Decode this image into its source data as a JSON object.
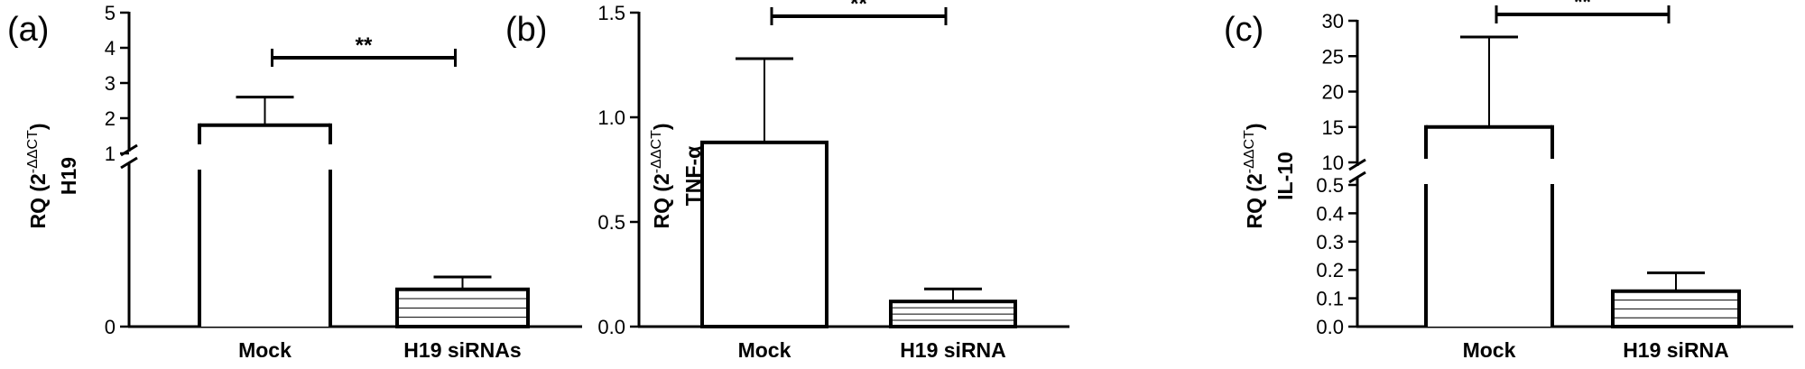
{
  "chart_data": [
    {
      "type": "bar",
      "panel_label": "(a)",
      "categories": [
        "Mock",
        "H19 siRNAs"
      ],
      "values": [
        1.8,
        0.12
      ],
      "errors": [
        0.8,
        0.04
      ],
      "patterns": [
        "none",
        "horizontal-lines"
      ],
      "ylabel_prefix": "RQ (2",
      "ylabel_sup": "-ΔΔCT",
      "ylabel_suffix": ")",
      "ylabel_gene": "H19",
      "y_broken": true,
      "y_ticks_upper": [
        "1",
        "2",
        "3",
        "4",
        "5"
      ],
      "y_ticks_lower": [
        "0"
      ],
      "significance": "**"
    },
    {
      "type": "bar",
      "panel_label": "(b)",
      "categories": [
        "Mock",
        "H19 siRNA"
      ],
      "values": [
        0.88,
        0.12
      ],
      "errors": [
        0.4,
        0.06
      ],
      "patterns": [
        "none",
        "horizontal-lines"
      ],
      "ylabel_prefix": "RQ (2",
      "ylabel_sup": "-ΔΔCT",
      "ylabel_suffix": ")",
      "ylabel_gene": "TNF-α",
      "y_broken": false,
      "y_ticks": [
        "0.0",
        "0.5",
        "1.0",
        "1.5"
      ],
      "ylim": [
        0,
        1.5
      ],
      "significance": "**"
    },
    {
      "type": "bar",
      "panel_label": "(c)",
      "categories": [
        "Mock",
        "H19 siRNA"
      ],
      "values": [
        15,
        0.125
      ],
      "errors": [
        12.7,
        0.065
      ],
      "patterns": [
        "none",
        "horizontal-lines"
      ],
      "ylabel_prefix": "RQ (2",
      "ylabel_sup": "-ΔΔCT",
      "ylabel_suffix": ")",
      "ylabel_gene": "IL-10",
      "y_broken": true,
      "y_ticks_upper": [
        "10",
        "15",
        "20",
        "25",
        "30"
      ],
      "y_ticks_lower": [
        "0.0",
        "0.1",
        "0.2",
        "0.3",
        "0.4",
        "0.5"
      ],
      "significance": "**"
    }
  ]
}
